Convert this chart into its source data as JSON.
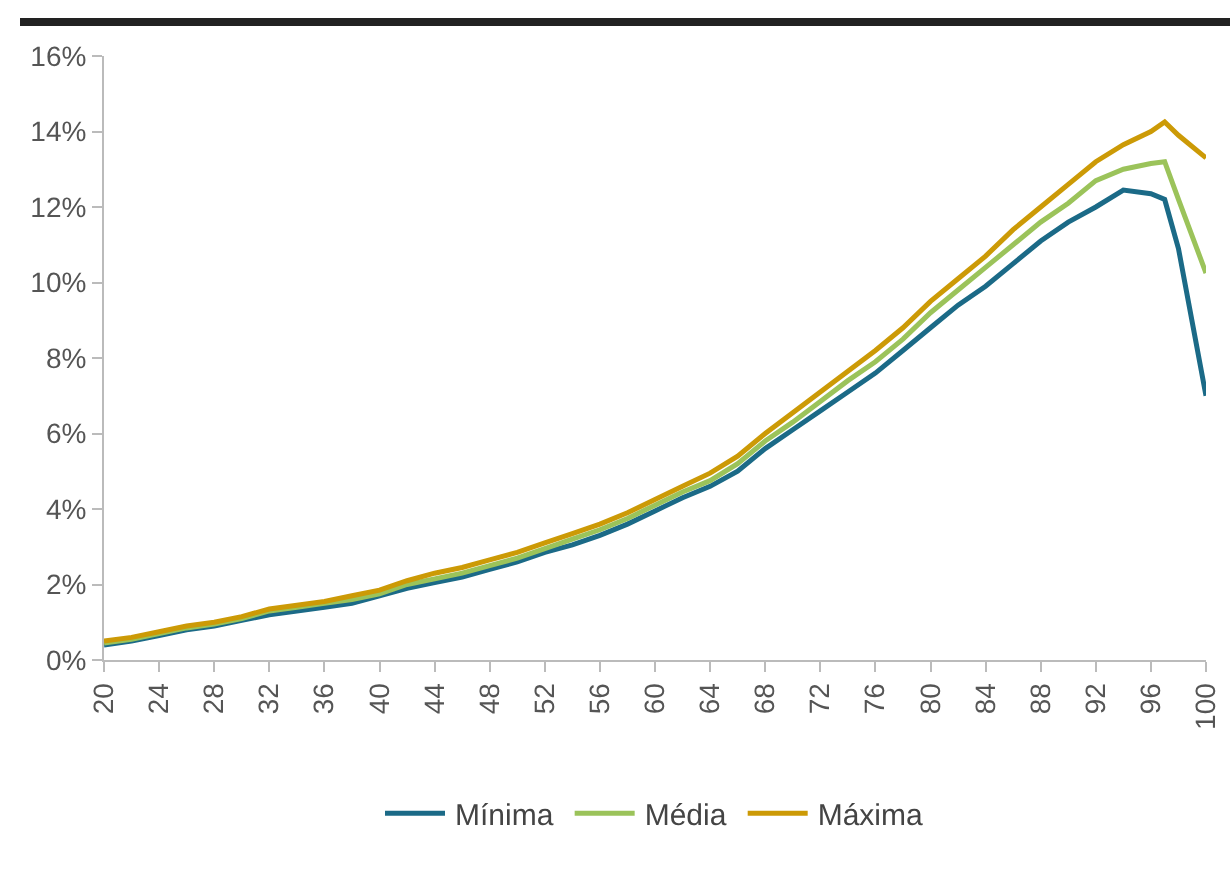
{
  "chart_data": {
    "type": "line",
    "x": [
      20,
      22,
      24,
      26,
      28,
      30,
      32,
      34,
      36,
      38,
      40,
      42,
      44,
      46,
      48,
      50,
      52,
      54,
      56,
      58,
      60,
      62,
      64,
      66,
      68,
      70,
      72,
      74,
      76,
      78,
      80,
      82,
      84,
      86,
      88,
      90,
      92,
      94,
      96,
      97,
      98,
      100
    ],
    "series": [
      {
        "name": "Mínima",
        "color": "#1b6a87",
        "values": [
          0.4,
          0.5,
          0.65,
          0.8,
          0.9,
          1.05,
          1.2,
          1.3,
          1.4,
          1.5,
          1.7,
          1.9,
          2.05,
          2.2,
          2.4,
          2.6,
          2.85,
          3.05,
          3.3,
          3.6,
          3.95,
          4.3,
          4.6,
          5.0,
          5.6,
          6.1,
          6.6,
          7.1,
          7.6,
          8.2,
          8.8,
          9.4,
          9.9,
          10.5,
          11.1,
          11.6,
          12.0,
          12.45,
          12.35,
          12.2,
          10.9,
          7.0
        ]
      },
      {
        "name": "Média",
        "color": "#9bc35a",
        "values": [
          0.45,
          0.55,
          0.7,
          0.85,
          0.95,
          1.1,
          1.3,
          1.4,
          1.5,
          1.6,
          1.75,
          2.0,
          2.15,
          2.3,
          2.5,
          2.7,
          2.95,
          3.2,
          3.45,
          3.75,
          4.1,
          4.45,
          4.75,
          5.2,
          5.8,
          6.3,
          6.85,
          7.4,
          7.9,
          8.5,
          9.2,
          9.8,
          10.4,
          11.0,
          11.6,
          12.1,
          12.7,
          13.0,
          13.15,
          13.2,
          12.2,
          10.25
        ]
      },
      {
        "name": "Máxima",
        "color": "#cc9a06",
        "values": [
          0.5,
          0.6,
          0.75,
          0.9,
          1.0,
          1.15,
          1.35,
          1.45,
          1.55,
          1.7,
          1.85,
          2.1,
          2.3,
          2.45,
          2.65,
          2.85,
          3.1,
          3.35,
          3.6,
          3.9,
          4.25,
          4.6,
          4.95,
          5.4,
          6.0,
          6.55,
          7.1,
          7.65,
          8.2,
          8.8,
          9.5,
          10.1,
          10.7,
          11.4,
          12.0,
          12.6,
          13.2,
          13.65,
          14.0,
          14.25,
          13.9,
          13.3
        ]
      }
    ],
    "xlim": [
      20,
      100
    ],
    "xticks": [
      20,
      24,
      28,
      32,
      36,
      40,
      44,
      48,
      52,
      56,
      60,
      64,
      68,
      72,
      76,
      80,
      84,
      88,
      92,
      96,
      100
    ],
    "ylim": [
      0,
      16
    ],
    "yticks": [
      {
        "value": 0,
        "label": "0%"
      },
      {
        "value": 2,
        "label": "2%"
      },
      {
        "value": 4,
        "label": "4%"
      },
      {
        "value": 6,
        "label": "6%"
      },
      {
        "value": 8,
        "label": "8%"
      },
      {
        "value": 10,
        "label": "10%"
      },
      {
        "value": 12,
        "label": "12%"
      },
      {
        "value": 14,
        "label": "14%"
      },
      {
        "value": 16,
        "label": "16%"
      }
    ],
    "grid": false,
    "legend": "bottom",
    "marker": "none",
    "line_style": "solid"
  }
}
